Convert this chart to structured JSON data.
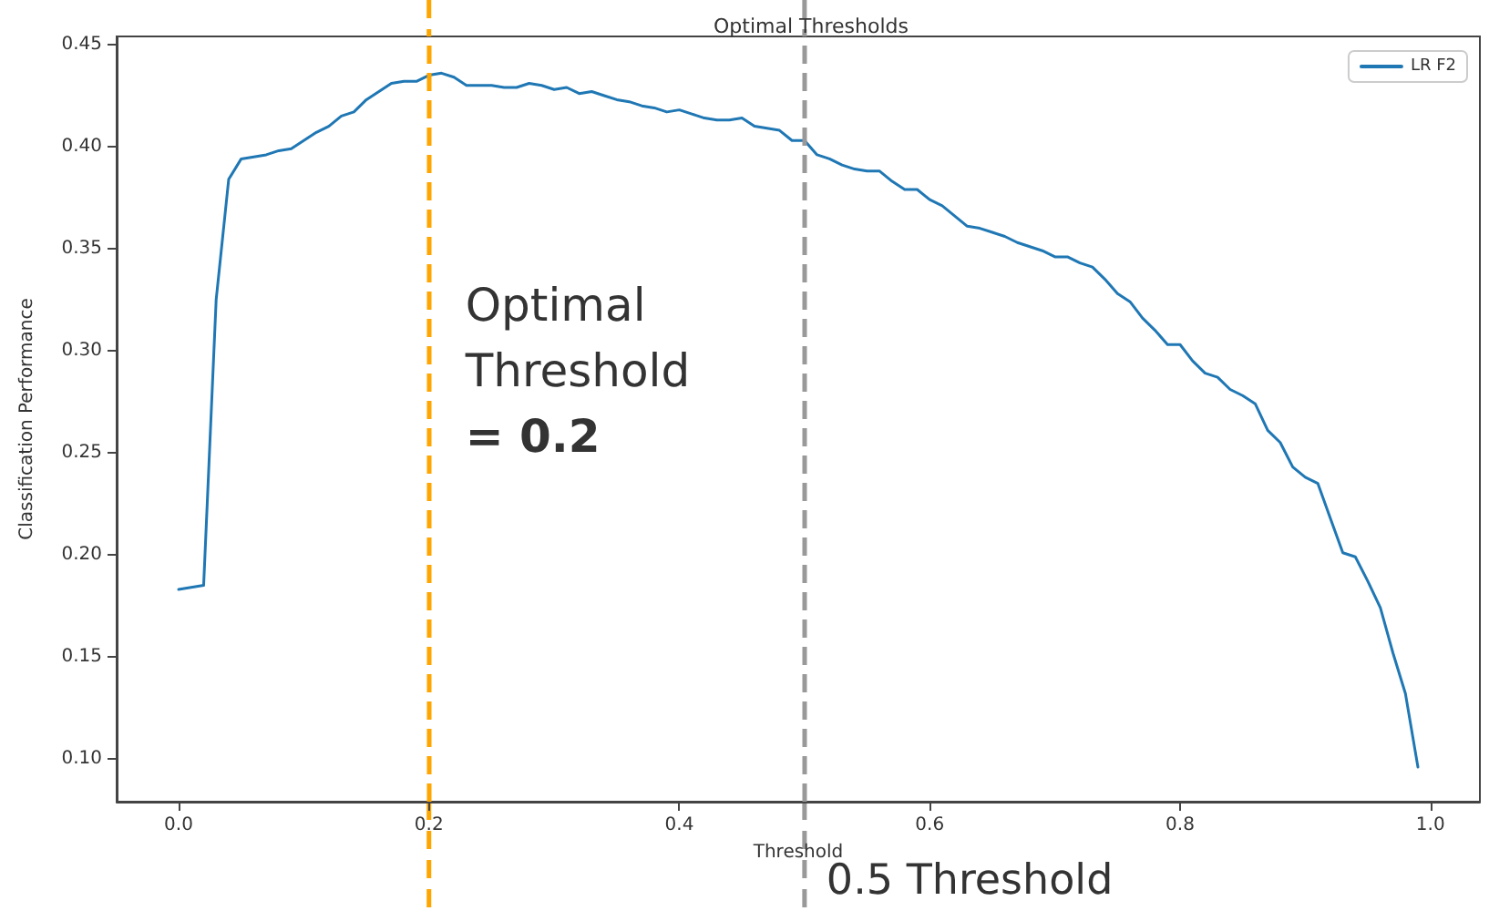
{
  "chart_data": {
    "type": "line",
    "title": "Optimal Thresholds",
    "xlabel": "Threshold",
    "ylabel": "Classification Performance",
    "x": [
      0,
      0.01,
      0.02,
      0.03,
      0.04,
      0.05,
      0.06,
      0.07,
      0.08,
      0.09,
      0.1,
      0.11,
      0.12,
      0.13,
      0.14,
      0.15,
      0.16,
      0.17,
      0.18,
      0.19,
      0.2,
      0.21,
      0.22,
      0.23,
      0.24,
      0.25,
      0.26,
      0.27,
      0.28,
      0.29,
      0.3,
      0.31,
      0.32,
      0.33,
      0.34,
      0.35,
      0.36,
      0.37,
      0.38,
      0.39,
      0.4,
      0.41,
      0.42,
      0.43,
      0.44,
      0.45,
      0.46,
      0.47,
      0.48,
      0.49,
      0.5,
      0.51,
      0.52,
      0.53,
      0.54,
      0.55,
      0.56,
      0.57,
      0.58,
      0.59,
      0.6,
      0.61,
      0.62,
      0.63,
      0.64,
      0.65,
      0.66,
      0.67,
      0.68,
      0.69,
      0.7,
      0.71,
      0.72,
      0.73,
      0.74,
      0.75,
      0.76,
      0.77,
      0.78,
      0.79,
      0.8,
      0.81,
      0.82,
      0.83,
      0.84,
      0.85,
      0.86,
      0.87,
      0.88,
      0.89,
      0.9,
      0.91,
      0.92,
      0.93,
      0.94,
      0.95,
      0.96,
      0.97,
      0.98,
      0.99
    ],
    "series": [
      {
        "name": "LR F2",
        "color": "#1f77b4",
        "values": [
          0.183,
          0.184,
          0.185,
          0.325,
          0.384,
          0.394,
          0.395,
          0.396,
          0.398,
          0.399,
          0.403,
          0.407,
          0.41,
          0.415,
          0.417,
          0.423,
          0.427,
          0.431,
          0.432,
          0.432,
          0.435,
          0.436,
          0.434,
          0.43,
          0.43,
          0.43,
          0.429,
          0.429,
          0.431,
          0.43,
          0.428,
          0.429,
          0.426,
          0.427,
          0.425,
          0.423,
          0.422,
          0.42,
          0.419,
          0.417,
          0.418,
          0.416,
          0.414,
          0.413,
          0.413,
          0.414,
          0.41,
          0.409,
          0.408,
          0.403,
          0.403,
          0.396,
          0.394,
          0.391,
          0.389,
          0.388,
          0.388,
          0.383,
          0.379,
          0.379,
          0.374,
          0.371,
          0.366,
          0.361,
          0.36,
          0.358,
          0.356,
          0.353,
          0.351,
          0.349,
          0.346,
          0.346,
          0.343,
          0.341,
          0.335,
          0.328,
          0.324,
          0.316,
          0.31,
          0.303,
          0.303,
          0.295,
          0.289,
          0.287,
          0.281,
          0.278,
          0.274,
          0.261,
          0.255,
          0.243,
          0.238,
          0.235,
          0.218,
          0.201,
          0.199,
          0.187,
          0.174,
          0.152,
          0.132,
          0.096
        ]
      }
    ],
    "xlim": [
      -0.0495,
      1.0395
    ],
    "ylim": [
      0.079,
      0.454
    ],
    "xticks": [
      {
        "value": 0,
        "label": "0.0"
      },
      {
        "value": 0.2,
        "label": "0.2"
      },
      {
        "value": 0.4,
        "label": "0.4"
      },
      {
        "value": 0.6,
        "label": "0.6"
      },
      {
        "value": 0.8,
        "label": "0.8"
      },
      {
        "value": 1,
        "label": "1.0"
      }
    ],
    "yticks": [
      {
        "value": 0.1,
        "label": "0.10"
      },
      {
        "value": 0.15,
        "label": "0.15"
      },
      {
        "value": 0.2,
        "label": "0.20"
      },
      {
        "value": 0.25,
        "label": "0.25"
      },
      {
        "value": 0.3,
        "label": "0.30"
      },
      {
        "value": 0.35,
        "label": "0.35"
      },
      {
        "value": 0.4,
        "label": "0.40"
      },
      {
        "value": 0.45,
        "label": "0.45"
      }
    ],
    "ref_lines": [
      {
        "axis": "x",
        "value": 0.2,
        "label": "Optimal\nThreshold\n= 0.2",
        "color": "#ffa500",
        "line_style": "dashed"
      },
      {
        "axis": "x",
        "value": 0.5,
        "label": "0.5 Threshold",
        "color": "#999999",
        "line_style": "dashed"
      }
    ],
    "legend": "top right",
    "grid": false,
    "marker": "none",
    "line_style": "solid"
  }
}
